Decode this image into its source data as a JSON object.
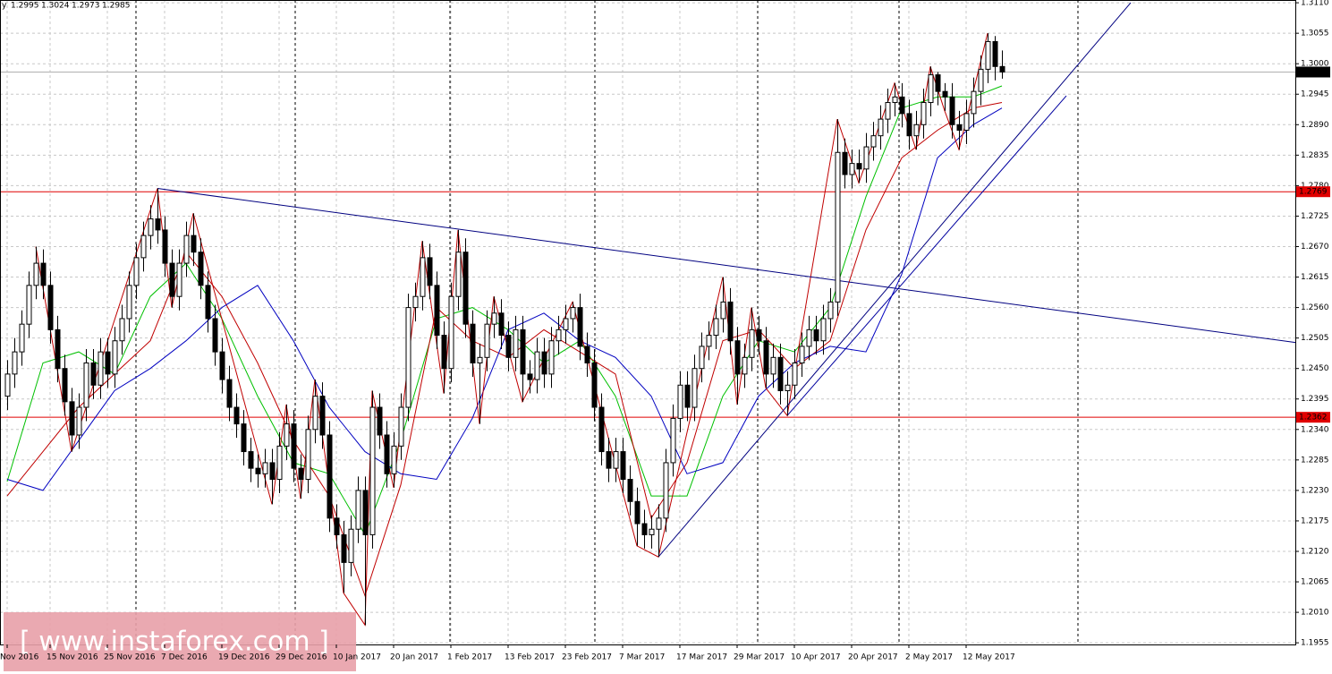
{
  "chart_data": {
    "type": "candlestick",
    "header": "y",
    "watermark": "[ www.instaforex.com ]",
    "categories": [
      "Nov 2016",
      null,
      null,
      null,
      null,
      null,
      "15 Nov 2016",
      null,
      null,
      null,
      null,
      null,
      null,
      null,
      "25 Nov 2016",
      null,
      null,
      null,
      null,
      null,
      null,
      null,
      "7 Dec 2016",
      null,
      null,
      null,
      null,
      null,
      null,
      null,
      "19 Dec 2016",
      null,
      null,
      null,
      null,
      null,
      null,
      null,
      "29 Dec 2016",
      null,
      null,
      null,
      null,
      null,
      null,
      null,
      "10 Jan 2017",
      null,
      null,
      null,
      null,
      null,
      null,
      null,
      "20 Jan 2017",
      null,
      null,
      null,
      null,
      null,
      null,
      null,
      "1 Feb 2017",
      null,
      null,
      null,
      null,
      null,
      null,
      null,
      "13 Feb 2017",
      null,
      null,
      null,
      null,
      null,
      null,
      null,
      "23 Feb 2017",
      null,
      null,
      null,
      null,
      null,
      null,
      null,
      "7 Mar 2017",
      null,
      null,
      null,
      null,
      null,
      null,
      null,
      "17 Mar 2017",
      null,
      null,
      null,
      null,
      null,
      null,
      null,
      "29 Mar 2017",
      null,
      null,
      null,
      null,
      null,
      null,
      null,
      "10 Apr 2017",
      null,
      null,
      null,
      null,
      null,
      null,
      null,
      "20 Apr 2017",
      null,
      null,
      null,
      null,
      null,
      null,
      null,
      "2 May 2017",
      null,
      null,
      null,
      null,
      null,
      null,
      null,
      "12 May 2017",
      null,
      null,
      null,
      null,
      null
    ],
    "open": [
      1.24,
      1.244,
      1.248,
      1.253,
      1.26,
      1.264,
      1.26,
      1.252,
      1.245,
      1.239,
      1.233,
      1.238,
      1.246,
      1.242,
      1.248,
      1.244,
      1.25,
      1.254,
      1.26,
      1.265,
      1.269,
      1.272,
      1.27,
      1.264,
      1.258,
      1.264,
      1.269,
      1.266,
      1.26,
      1.254,
      1.248,
      1.243,
      1.238,
      1.235,
      1.23,
      1.227,
      1.226,
      1.228,
      1.225,
      1.231,
      1.235,
      1.227,
      1.225,
      1.234,
      1.24,
      1.233,
      1.218,
      1.215,
      1.21,
      1.216,
      1.223,
      1.215,
      1.238,
      1.233,
      1.226,
      1.231,
      1.238,
      1.256,
      1.258,
      1.265,
      1.26,
      1.251,
      1.245,
      1.258,
      1.266,
      1.253,
      1.246,
      1.247,
      1.253,
      1.255,
      1.251,
      1.247,
      1.252,
      1.244,
      1.243,
      1.248,
      1.244,
      1.25,
      1.252,
      1.254,
      1.256,
      1.249,
      1.246,
      1.238,
      1.23,
      1.227,
      1.23,
      1.225,
      1.221,
      1.217,
      1.215,
      1.216,
      1.218,
      1.228,
      1.236,
      1.242,
      1.238,
      1.245,
      1.249,
      1.251,
      1.254,
      1.257,
      1.25,
      1.244,
      1.247,
      1.252,
      1.25,
      1.244,
      1.247,
      1.241,
      1.242,
      1.246,
      1.249,
      1.252,
      1.25,
      1.254,
      1.257,
      1.284,
      1.28,
      1.282,
      1.281,
      1.285,
      1.287,
      1.29,
      1.293,
      1.294,
      1.291,
      1.287,
      1.289,
      1.293,
      1.298,
      1.295,
      1.294,
      1.289,
      1.288,
      1.291,
      1.295,
      1.299,
      1.304,
      1.2995
    ],
    "high": [
      1.2465,
      1.2505,
      1.2555,
      1.2625,
      1.267,
      1.2665,
      1.2625,
      1.2545,
      1.2475,
      1.2415,
      1.2405,
      1.2485,
      1.2485,
      1.2505,
      1.2505,
      1.2525,
      1.2565,
      1.2625,
      1.2675,
      1.2715,
      1.2745,
      1.2775,
      1.2725,
      1.2665,
      1.2665,
      1.2715,
      1.273,
      1.2685,
      1.2625,
      1.2565,
      1.2505,
      1.2455,
      1.2405,
      1.2375,
      1.2325,
      1.2295,
      1.2305,
      1.2305,
      1.2335,
      1.2385,
      1.2375,
      1.2295,
      1.2365,
      1.243,
      1.2425,
      1.2355,
      1.2205,
      1.2175,
      1.2185,
      1.2255,
      1.2255,
      1.241,
      1.2405,
      1.2355,
      1.2335,
      1.2405,
      1.2585,
      1.2605,
      1.268,
      1.2675,
      1.2625,
      1.2535,
      1.2605,
      1.27,
      1.2685,
      1.2555,
      1.2495,
      1.2555,
      1.258,
      1.2575,
      1.2535,
      1.2545,
      1.2545,
      1.2465,
      1.2505,
      1.2505,
      1.2525,
      1.2545,
      1.2565,
      1.257,
      1.2585,
      1.2515,
      1.2485,
      1.2405,
      1.2325,
      1.2325,
      1.2325,
      1.2275,
      1.2235,
      1.2195,
      1.2185,
      1.2205,
      1.2305,
      1.2385,
      1.2445,
      1.2445,
      1.2475,
      1.2515,
      1.2535,
      1.2565,
      1.2615,
      1.2595,
      1.2525,
      1.2495,
      1.256,
      1.2545,
      1.2525,
      1.2495,
      1.2495,
      1.2445,
      1.2485,
      1.2515,
      1.2545,
      1.2545,
      1.2565,
      1.2595,
      1.29,
      1.2865,
      1.2845,
      1.2845,
      1.2875,
      1.2895,
      1.2925,
      1.2955,
      1.2965,
      1.2965,
      1.2935,
      1.2915,
      1.2955,
      1.2995,
      1.2985,
      1.2965,
      1.2965,
      1.2915,
      1.2935,
      1.2975,
      1.3015,
      1.3055,
      1.305,
      1.3024
    ],
    "low": [
      1.2375,
      1.2415,
      1.2455,
      1.2505,
      1.2575,
      1.2575,
      1.2495,
      1.2425,
      1.2365,
      1.23,
      1.2305,
      1.2355,
      1.2395,
      1.2395,
      1.2415,
      1.2415,
      1.2475,
      1.2515,
      1.2575,
      1.2625,
      1.2665,
      1.2675,
      1.2615,
      1.256,
      1.2555,
      1.2615,
      1.2635,
      1.2575,
      1.2515,
      1.2455,
      1.2405,
      1.2355,
      1.2325,
      1.2275,
      1.2245,
      1.2235,
      1.2235,
      1.2205,
      1.2225,
      1.2285,
      1.2245,
      1.2215,
      1.2225,
      1.2315,
      1.2305,
      1.2155,
      1.2125,
      1.2045,
      1.2075,
      1.2135,
      1.1987,
      1.2125,
      1.2305,
      1.2235,
      1.2235,
      1.2285,
      1.2355,
      1.2535,
      1.2555,
      1.2575,
      1.2485,
      1.2405,
      1.2425,
      1.2555,
      1.2505,
      1.2435,
      1.235,
      1.2445,
      1.2505,
      1.2485,
      1.2445,
      1.2445,
      1.239,
      1.2405,
      1.2405,
      1.2415,
      1.2415,
      1.2475,
      1.2495,
      1.2515,
      1.2465,
      1.2435,
      1.2355,
      1.2275,
      1.2245,
      1.2245,
      1.2225,
      1.2185,
      1.213,
      1.2125,
      1.2125,
      1.211,
      1.2155,
      1.2255,
      1.2335,
      1.2355,
      1.2355,
      1.2425,
      1.2465,
      1.2485,
      1.2515,
      1.2475,
      1.2385,
      1.2415,
      1.2445,
      1.2475,
      1.2415,
      1.2415,
      1.2385,
      1.2365,
      1.2395,
      1.2435,
      1.2465,
      1.2475,
      1.2475,
      1.2515,
      1.2545,
      1.2775,
      1.2775,
      1.2785,
      1.2785,
      1.2825,
      1.2845,
      1.2875,
      1.2905,
      1.2885,
      1.2845,
      1.2845,
      1.2865,
      1.2905,
      1.2925,
      1.2915,
      1.2865,
      1.2845,
      1.2855,
      1.2885,
      1.2925,
      1.2965,
      1.297,
      1.2973
    ],
    "close": [
      1.244,
      1.248,
      1.253,
      1.26,
      1.264,
      1.26,
      1.252,
      1.245,
      1.239,
      1.233,
      1.238,
      1.246,
      1.242,
      1.248,
      1.244,
      1.25,
      1.254,
      1.26,
      1.265,
      1.269,
      1.272,
      1.27,
      1.264,
      1.258,
      1.264,
      1.269,
      1.266,
      1.26,
      1.254,
      1.248,
      1.243,
      1.238,
      1.235,
      1.23,
      1.227,
      1.226,
      1.228,
      1.225,
      1.231,
      1.235,
      1.227,
      1.225,
      1.234,
      1.24,
      1.233,
      1.218,
      1.215,
      1.21,
      1.216,
      1.223,
      1.215,
      1.238,
      1.233,
      1.226,
      1.231,
      1.238,
      1.256,
      1.258,
      1.265,
      1.26,
      1.251,
      1.245,
      1.258,
      1.266,
      1.253,
      1.246,
      1.247,
      1.253,
      1.255,
      1.251,
      1.247,
      1.252,
      1.244,
      1.243,
      1.248,
      1.244,
      1.25,
      1.252,
      1.254,
      1.256,
      1.249,
      1.246,
      1.238,
      1.23,
      1.227,
      1.23,
      1.225,
      1.221,
      1.217,
      1.215,
      1.216,
      1.218,
      1.228,
      1.236,
      1.242,
      1.238,
      1.245,
      1.249,
      1.251,
      1.254,
      1.257,
      1.25,
      1.244,
      1.247,
      1.252,
      1.25,
      1.244,
      1.247,
      1.241,
      1.242,
      1.246,
      1.249,
      1.252,
      1.25,
      1.254,
      1.257,
      1.284,
      1.28,
      1.282,
      1.281,
      1.285,
      1.287,
      1.29,
      1.293,
      1.294,
      1.291,
      1.287,
      1.289,
      1.293,
      1.298,
      1.295,
      1.294,
      1.289,
      1.288,
      1.291,
      1.295,
      1.299,
      1.304,
      1.2995,
      1.2985
    ],
    "ylim": [
      1.1952,
      1.3115
    ],
    "yticks": [
      {
        "value": 1.311,
        "label": "1.3110"
      },
      1.3055,
      {
        "value": 1.3,
        "label": "1.3000"
      },
      1.2945,
      {
        "value": 1.289,
        "label": "1.2890"
      },
      1.2835,
      {
        "value": 1.278,
        "label": "1.2780"
      },
      1.2725,
      {
        "value": 1.267,
        "label": "1.2670"
      },
      1.2615,
      {
        "value": 1.256,
        "label": "1.2560"
      },
      1.2505,
      {
        "value": 1.245,
        "label": "1.2450"
      },
      1.2395,
      {
        "value": 1.234,
        "label": "1.2340"
      },
      1.2285,
      {
        "value": 1.223,
        "label": "1.2230"
      },
      1.2175,
      {
        "value": 1.212,
        "label": "1.2120"
      },
      1.2065,
      {
        "value": 1.201,
        "label": "1.2010"
      },
      1.1955
    ],
    "grid": true,
    "up_color": "#ffffff",
    "down_color": "#000000",
    "levels": [
      {
        "value": 1.2769,
        "color": "#e00000"
      },
      {
        "value": 1.2362,
        "color": "#e00000"
      }
    ],
    "overlays": [
      {
        "color": "#00c000",
        "x": [
          0,
          5,
          10,
          15,
          20,
          25,
          30,
          35,
          40,
          45,
          50,
          55,
          60,
          65,
          70,
          75,
          80,
          85,
          90,
          95,
          100,
          105,
          110,
          115,
          120,
          125,
          130,
          135,
          139
        ],
        "values": [
          1.2246,
          1.246,
          1.248,
          1.244,
          1.258,
          1.264,
          1.254,
          1.24,
          1.228,
          1.226,
          1.215,
          1.232,
          1.254,
          1.256,
          1.252,
          1.246,
          1.25,
          1.24,
          1.222,
          1.222,
          1.24,
          1.25,
          1.248,
          1.256,
          1.276,
          1.292,
          1.294,
          1.294,
          1.296
        ]
      },
      {
        "color": "#c00000",
        "x": [
          0,
          5,
          10,
          15,
          20,
          25,
          30,
          35,
          40,
          45,
          50,
          55,
          60,
          65,
          70,
          75,
          80,
          85,
          90,
          95,
          100,
          105,
          110,
          115,
          120,
          125,
          130,
          135,
          139
        ],
        "values": [
          1.222,
          1.23,
          1.238,
          1.244,
          1.25,
          1.266,
          1.258,
          1.246,
          1.232,
          1.222,
          1.204,
          1.224,
          1.256,
          1.25,
          1.247,
          1.252,
          1.248,
          1.244,
          1.218,
          1.228,
          1.25,
          1.252,
          1.245,
          1.25,
          1.27,
          1.283,
          1.288,
          1.292,
          1.293
        ]
      },
      {
        "color": "#0000c0",
        "x": [
          0,
          5,
          10,
          15,
          20,
          25,
          30,
          35,
          40,
          45,
          50,
          55,
          60,
          65,
          70,
          75,
          80,
          85,
          90,
          95,
          100,
          105,
          110,
          115,
          120,
          125,
          130,
          135,
          139
        ],
        "values": [
          1.225,
          1.223,
          1.232,
          1.241,
          1.245,
          1.25,
          1.256,
          1.26,
          1.25,
          1.238,
          1.23,
          1.226,
          1.225,
          1.236,
          1.252,
          1.255,
          1.25,
          1.247,
          1.24,
          1.226,
          1.228,
          1.24,
          1.246,
          1.249,
          1.248,
          1.262,
          1.283,
          1.289,
          1.292
        ]
      },
      {
        "color": "#c00000",
        "x": [
          4,
          9,
          21,
          23,
          26,
          37,
          39,
          41,
          43,
          47,
          50,
          51,
          54,
          58,
          61,
          63,
          66,
          68,
          72,
          79,
          88,
          91,
          100,
          102,
          104,
          106,
          109,
          116,
          119,
          124,
          127,
          129,
          131,
          133,
          137
        ],
        "values": [
          1.267,
          1.23,
          1.2775,
          1.256,
          1.273,
          1.2205,
          1.2385,
          1.2215,
          1.243,
          1.2045,
          1.1987,
          1.241,
          1.2235,
          1.268,
          1.2405,
          1.27,
          1.235,
          1.258,
          1.239,
          1.257,
          1.213,
          1.211,
          1.2615,
          1.2385,
          1.256,
          1.2415,
          1.2365,
          1.29,
          1.2785,
          1.2965,
          1.2845,
          1.2995,
          1.2915,
          1.2845,
          1.3055
        ]
      }
    ],
    "trendlines": [
      {
        "color": "#000080",
        "x": [
          21,
          180
        ],
        "values": [
          1.2775,
          1.2497
        ]
      },
      {
        "color": "#000080",
        "x": [
          91,
          157
        ],
        "values": [
          1.211,
          1.311
        ]
      },
      {
        "color": "#0000a0",
        "x": [
          109,
          148
        ],
        "values": [
          1.2365,
          1.2942
        ]
      }
    ]
  }
}
